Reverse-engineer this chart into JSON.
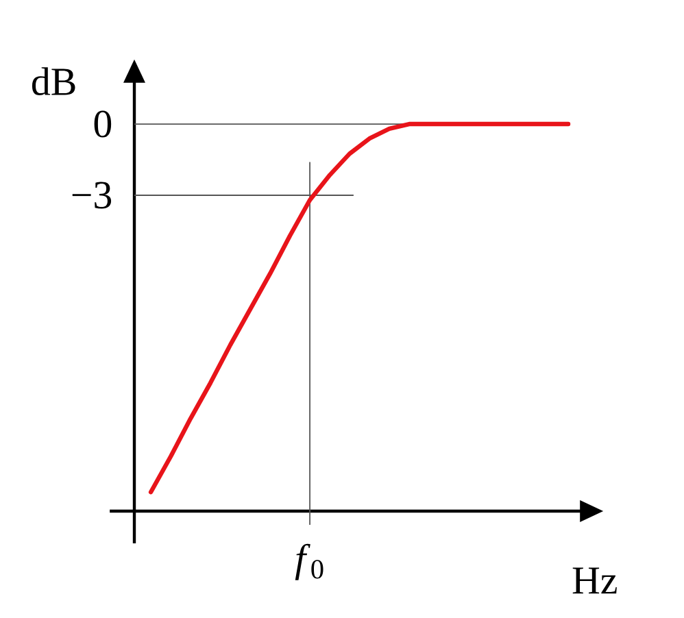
{
  "chart_data": {
    "type": "line",
    "xlabel": "Hz",
    "ylabel": "dB",
    "categories": [
      null,
      null,
      null,
      null,
      null,
      null,
      null,
      null,
      null,
      null,
      null,
      null,
      null,
      null,
      null,
      null,
      null,
      null,
      null,
      null,
      null,
      null,
      null
    ],
    "series": [
      {
        "color": "#e8141a",
        "values": [
          -15.5,
          -14.0,
          -12.4,
          -10.9,
          -9.3,
          -7.8,
          -6.3,
          -4.7,
          -3.2,
          -2.15,
          -1.25,
          -0.61,
          -0.2,
          0,
          0,
          0,
          0,
          0,
          0,
          0,
          0,
          0,
          null
        ]
      }
    ],
    "ylim": [
      -16.3,
      1.8
    ],
    "yticks": [
      {
        "value": 0,
        "label": "0"
      },
      {
        "value": -3,
        "label": "−3"
      }
    ],
    "ref_lines": [
      {
        "axis": "y",
        "value": 0
      },
      {
        "axis": "y",
        "value": -3
      }
    ],
    "annotations": [
      "*f*$_{0}$"
    ],
    "marker": "none",
    "line_style": "solid",
    "grid": false
  }
}
